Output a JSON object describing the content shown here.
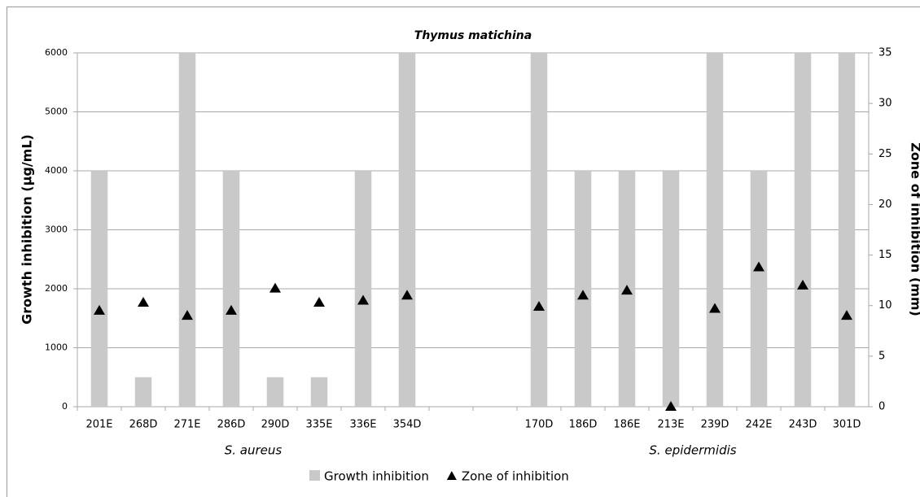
{
  "chart_data": {
    "type": "bar",
    "title": "Thymus matichina",
    "y_label": "Growth inhibition (μg/mL)",
    "y2_label": "Zone of inhibition (mm)",
    "categories": [
      "201E",
      "268D",
      "271E",
      "286D",
      "290D",
      "335E",
      "336E",
      "354D",
      null,
      null,
      "170D",
      "186D",
      "186E",
      "213E",
      "239D",
      "242E",
      "243D",
      "301D"
    ],
    "group_labels": [
      "S. aureus",
      "S. epidermidis"
    ],
    "series": [
      {
        "name": "Growth inhibition",
        "color": "#c9c9c9",
        "values": [
          4000,
          500,
          6000,
          4000,
          500,
          500,
          4000,
          6000,
          null,
          null,
          6000,
          4000,
          4000,
          4000,
          6000,
          4000,
          6000,
          6000
        ]
      },
      {
        "name": "Zone of inhibition",
        "color": "#000000",
        "axis": "y2",
        "marker": "triangle",
        "values": [
          9.5,
          10.3,
          9.0,
          9.5,
          11.7,
          10.3,
          10.5,
          11.0,
          null,
          null,
          9.9,
          11.0,
          11.5,
          0,
          9.7,
          13.8,
          12.0,
          9.0
        ]
      }
    ],
    "ylim": [
      0,
      6000
    ],
    "yticks": [
      0,
      1000,
      2000,
      3000,
      4000,
      5000,
      6000
    ],
    "y2lim": [
      0,
      35
    ],
    "y2ticks": [
      0,
      5,
      10,
      15,
      20,
      25,
      30,
      35
    ],
    "grid": true,
    "legend": "bottom"
  }
}
